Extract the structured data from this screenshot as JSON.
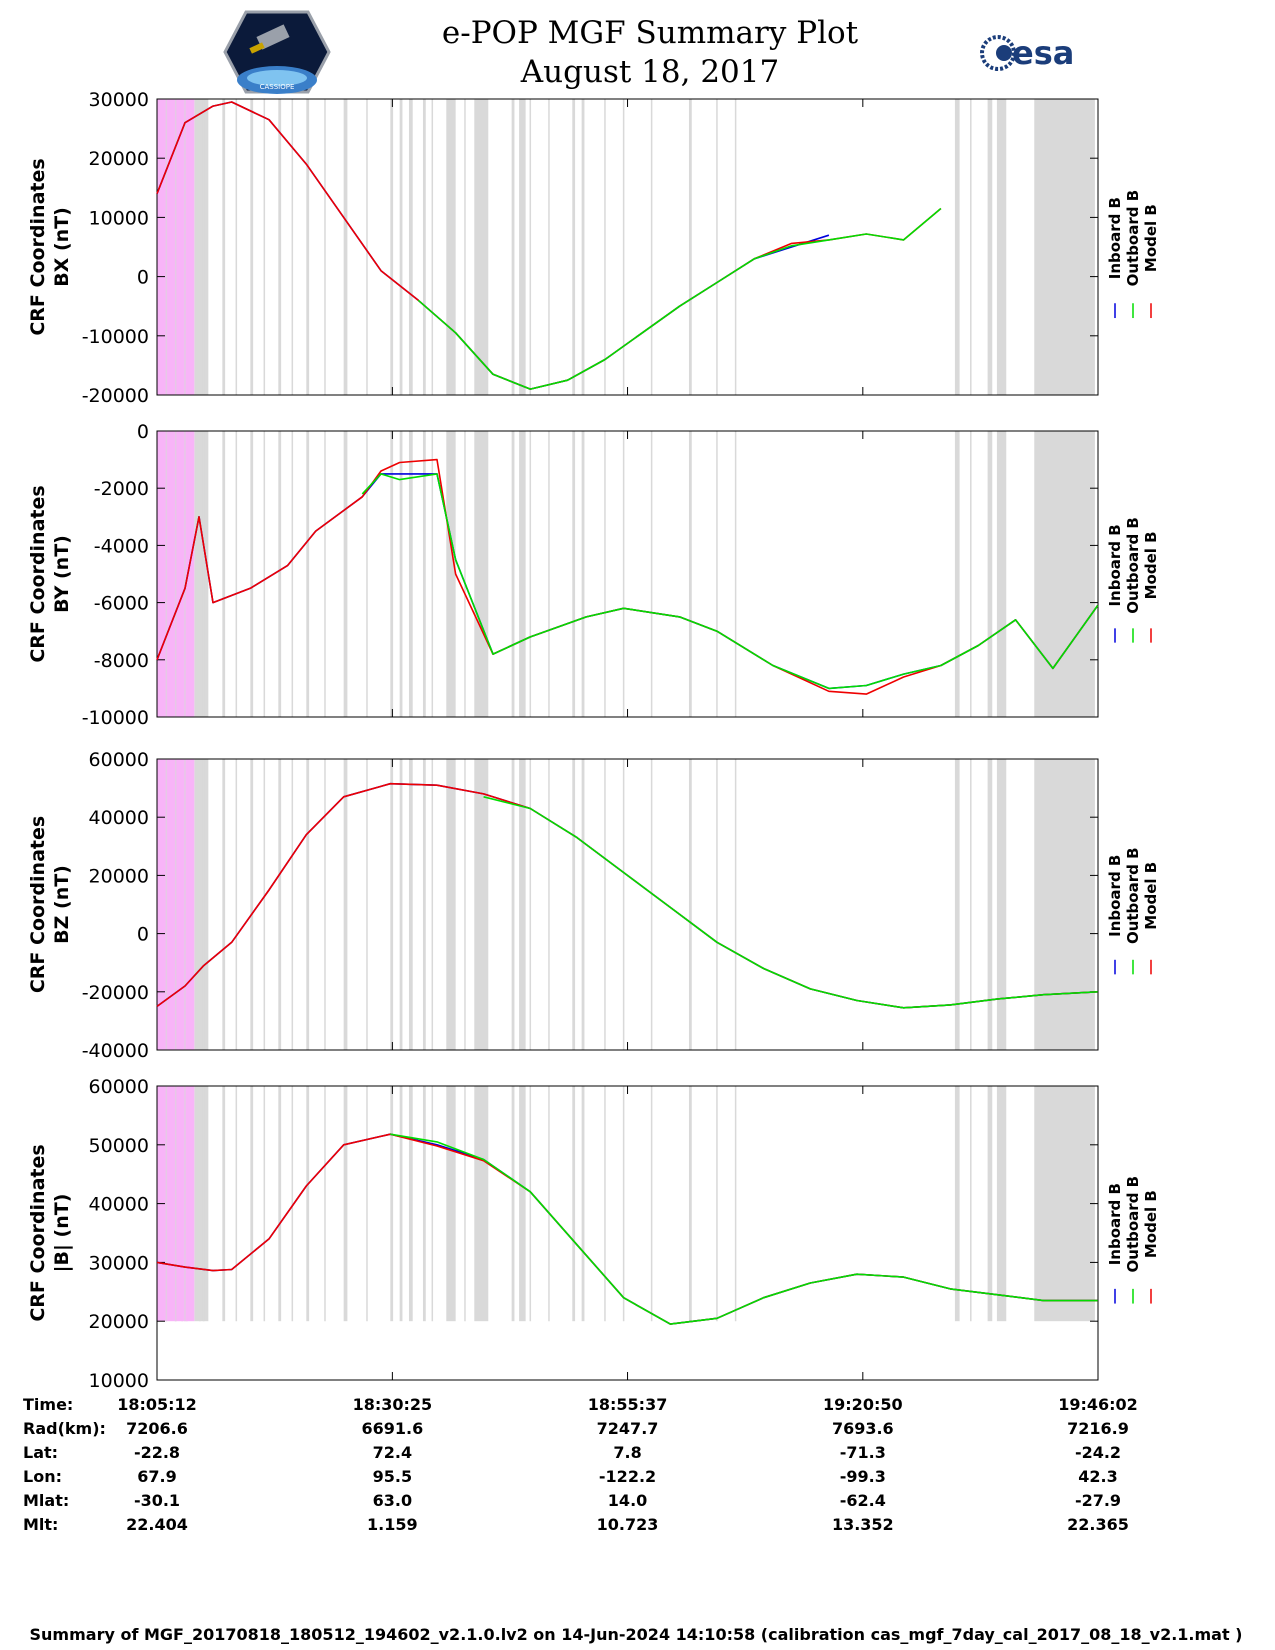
{
  "header": {
    "title_line1": "e-POP MGF Summary Plot",
    "title_line2": "August 18, 2017",
    "left_logo_text": "CASSIOPE",
    "right_logo_text": "esa"
  },
  "colors": {
    "inboard": "#0000dd",
    "outboard": "#00dd00",
    "model": "#ee0000",
    "gap_shade": "#d9d9d9",
    "magenta_shade": "#f8b4f8"
  },
  "chart_data": [
    {
      "type": "line",
      "ylabel_line1": "CRF Coordinates",
      "ylabel_line2": "BX (nT)",
      "ylim": [
        -20000,
        30000
      ],
      "yticks": [
        "30000",
        "20000",
        "10000",
        "0",
        "-10000",
        "-20000"
      ],
      "legend": [
        "Inboard B",
        "Outboard B",
        "Model B"
      ],
      "x_minutes": [
        0,
        3,
        6,
        8,
        12,
        16,
        20,
        24,
        28,
        32,
        36,
        40,
        44,
        48,
        52,
        56,
        60,
        64,
        68,
        72,
        76,
        80,
        84,
        88,
        92,
        96,
        100.8
      ],
      "series": [
        {
          "name": "Inboard B",
          "values": [
            14000,
            26000,
            28800,
            29500,
            26500,
            19000,
            10000,
            1000,
            -4000,
            -9500,
            -16500,
            -19000,
            -17500,
            -14000,
            -9500,
            -5000,
            -1000,
            3000,
            5000,
            7000,
            null,
            null,
            null,
            null,
            null,
            null,
            null
          ],
          "visible_minutes": [
            3,
            33
          ]
        },
        {
          "name": "Outboard B",
          "values": [
            null,
            null,
            null,
            null,
            null,
            null,
            null,
            null,
            -4000,
            -9500,
            -16500,
            -19000,
            -17500,
            -14000,
            -9500,
            -5000,
            -1000,
            3000,
            5200,
            6200,
            7200,
            6200,
            11500,
            null,
            null,
            null,
            null
          ]
        },
        {
          "name": "Model B",
          "values": [
            14000,
            26000,
            28800,
            29500,
            26500,
            19000,
            10000,
            1000,
            -4000,
            -9500,
            -16500,
            -19000,
            -17500,
            -14000,
            -9500,
            -5000,
            -1000,
            3000,
            5600,
            6200,
            7200,
            6200,
            11500,
            null,
            null,
            null,
            null
          ]
        }
      ]
    },
    {
      "type": "line",
      "ylabel_line1": "CRF Coordinates",
      "ylabel_line2": "BY (nT)",
      "ylim": [
        -10000,
        0
      ],
      "yticks": [
        "0",
        "-2000",
        "-4000",
        "-6000",
        "-8000",
        "-10000"
      ],
      "legend": [
        "Inboard B",
        "Outboard B",
        "Model B"
      ],
      "x_minutes": [
        0,
        3,
        4.5,
        6,
        10,
        14,
        17,
        22,
        24,
        26,
        30,
        32,
        36,
        40,
        46,
        50,
        56,
        60,
        66,
        72,
        76,
        80,
        84,
        88,
        92,
        96,
        100.8
      ],
      "series": [
        {
          "name": "Inboard B",
          "values": [
            -8000,
            -5500,
            -3000,
            -6000,
            -5500,
            -4700,
            -3500,
            -2300,
            -1500,
            -1500,
            -1500,
            -4500,
            -7800,
            -7200,
            -6500,
            -6200,
            -6500,
            -7000,
            -8200,
            -9000,
            -8900,
            -8500,
            -8200,
            -7500,
            -6600,
            -8300,
            -6100
          ]
        },
        {
          "name": "Outboard B",
          "values": [
            null,
            null,
            null,
            null,
            null,
            null,
            null,
            -2200,
            -1500,
            -1700,
            -1500,
            -4500,
            -7800,
            -7200,
            -6500,
            -6200,
            -6500,
            -7000,
            -8200,
            -9000,
            -8900,
            -8500,
            -8200,
            -7500,
            -6600,
            -8300,
            -6100
          ]
        },
        {
          "name": "Model B",
          "values": [
            -8000,
            -5500,
            -3000,
            -6000,
            -5500,
            -4700,
            -3500,
            -2300,
            -1400,
            -1100,
            -1000,
            -5000,
            -7800,
            -7200,
            -6500,
            -6200,
            -6500,
            -7000,
            -8200,
            -9100,
            -9200,
            -8600,
            -8200,
            -7500,
            -6600,
            -8300,
            -6100
          ]
        }
      ]
    },
    {
      "type": "line",
      "ylabel_line1": "CRF Coordinates",
      "ylabel_line2": "BZ (nT)",
      "ylim": [
        -40000,
        60000
      ],
      "yticks": [
        "60000",
        "40000",
        "20000",
        "0",
        "-20000",
        "-40000"
      ],
      "legend": [
        "Inboard B",
        "Outboard B",
        "Model B"
      ],
      "x_minutes": [
        0,
        3,
        5,
        8,
        12,
        16,
        20,
        25,
        30,
        35,
        40,
        45,
        50,
        55,
        60,
        65,
        70,
        75,
        80,
        85,
        90,
        95,
        100.8
      ],
      "series": [
        {
          "name": "Inboard B",
          "values": [
            -25000,
            -18000,
            -11000,
            -3000,
            15000,
            34000,
            47000,
            51500,
            51000,
            48000,
            43000,
            33000,
            21000,
            9000,
            -3000,
            -12000,
            -19000,
            -23000,
            -25500,
            -24500,
            -22500,
            -21000,
            -20000
          ]
        },
        {
          "name": "Outboard B",
          "values": [
            null,
            null,
            null,
            null,
            null,
            null,
            null,
            null,
            null,
            47000,
            43000,
            33000,
            21000,
            9000,
            -3000,
            -12000,
            -19000,
            -23000,
            -25500,
            -24500,
            -22500,
            -21000,
            -20000
          ]
        },
        {
          "name": "Model B",
          "values": [
            -25000,
            -18000,
            -11000,
            -3000,
            15000,
            34000,
            47000,
            51500,
            51000,
            48000,
            43000,
            33000,
            21000,
            9000,
            -3000,
            -12000,
            -19000,
            -23000,
            -25500,
            -24500,
            -22500,
            -21000,
            -20000
          ]
        }
      ]
    },
    {
      "type": "line",
      "ylabel_line1": "CRF Coordinates",
      "ylabel_line2": "|B| (nT)",
      "ylim": [
        10000,
        60000
      ],
      "yticks": [
        "60000",
        "50000",
        "40000",
        "30000",
        "20000",
        "10000"
      ],
      "legend": [
        "Inboard B",
        "Outboard B",
        "Model B"
      ],
      "x_minutes": [
        0,
        3,
        6,
        8,
        12,
        16,
        20,
        25,
        30,
        35,
        40,
        45,
        50,
        55,
        60,
        65,
        70,
        75,
        80,
        85,
        90,
        95,
        100.8
      ],
      "series": [
        {
          "name": "Inboard B",
          "values": [
            30000,
            29200,
            28600,
            28800,
            34000,
            43000,
            50000,
            51800,
            50000,
            47500,
            42000,
            33000,
            24000,
            19500,
            20500,
            24000,
            26500,
            28000,
            27500,
            25500,
            24500,
            23500,
            23500
          ]
        },
        {
          "name": "Outboard B",
          "values": [
            null,
            null,
            null,
            null,
            null,
            null,
            null,
            51800,
            50500,
            47500,
            42000,
            33000,
            24000,
            19500,
            20500,
            24000,
            26500,
            28000,
            27500,
            25500,
            24500,
            23500,
            23500
          ]
        },
        {
          "name": "Model B",
          "values": [
            30000,
            29200,
            28600,
            28800,
            34000,
            43000,
            50000,
            51800,
            49800,
            47300,
            42000,
            33000,
            24000,
            19500,
            20500,
            24000,
            26500,
            28000,
            27500,
            25500,
            24500,
            23500,
            23500
          ]
        }
      ]
    }
  ],
  "shading": {
    "magenta_span_minutes": [
      0,
      4
    ],
    "gray_spans_minutes": [
      [
        4,
        5.5
      ],
      [
        7,
        7.3
      ],
      [
        10,
        10.3
      ],
      [
        13,
        13.3
      ],
      [
        16,
        16.3
      ],
      [
        20,
        20.4
      ],
      [
        25,
        25.3
      ],
      [
        26,
        26.3
      ],
      [
        27,
        27.4
      ],
      [
        28.5,
        28.8
      ],
      [
        31,
        32
      ],
      [
        34,
        35.5
      ],
      [
        38,
        38.3
      ],
      [
        38.8,
        39.5
      ],
      [
        44.5,
        44.8
      ],
      [
        45.5,
        45.8
      ],
      [
        57,
        57.3
      ],
      [
        85.5,
        86
      ],
      [
        89,
        89.5
      ],
      [
        90,
        91
      ],
      [
        94,
        100.5
      ]
    ],
    "light_lines_minutes": [
      1,
      2,
      2.7,
      3.2,
      4.6,
      5,
      8.5,
      11.5,
      14.5,
      18,
      22.5,
      29.5,
      33,
      40,
      42,
      48,
      50,
      53,
      60,
      62,
      87.2
    ]
  },
  "x_axis": {
    "tick_minutes": [
      0,
      25.22,
      50.42,
      75.63,
      100.83
    ],
    "annotation_labels": [
      "Time:",
      "Rad(km):",
      "Lat:",
      "Lon:",
      "Mlat:",
      "Mlt:"
    ],
    "annotation_columns": [
      [
        "18:05:12",
        "7206.6",
        "-22.8",
        "67.9",
        "-30.1",
        "22.404"
      ],
      [
        "18:30:25",
        "6691.6",
        "72.4",
        "95.5",
        "63.0",
        "1.159"
      ],
      [
        "18:55:37",
        "7247.7",
        "7.8",
        "-122.2",
        "14.0",
        "10.723"
      ],
      [
        "19:20:50",
        "7693.6",
        "-71.3",
        "-99.3",
        "-62.4",
        "13.352"
      ],
      [
        "19:46:02",
        "7216.9",
        "-24.2",
        "42.3",
        "-27.9",
        "22.365"
      ]
    ]
  },
  "footer": {
    "text": "Summary of MGF_20170818_180512_194602_v2.1.0.lv2 on 14-Jun-2024 14:10:58 (calibration cas_mgf_7day_cal_2017_08_18_v2.1.mat )"
  }
}
